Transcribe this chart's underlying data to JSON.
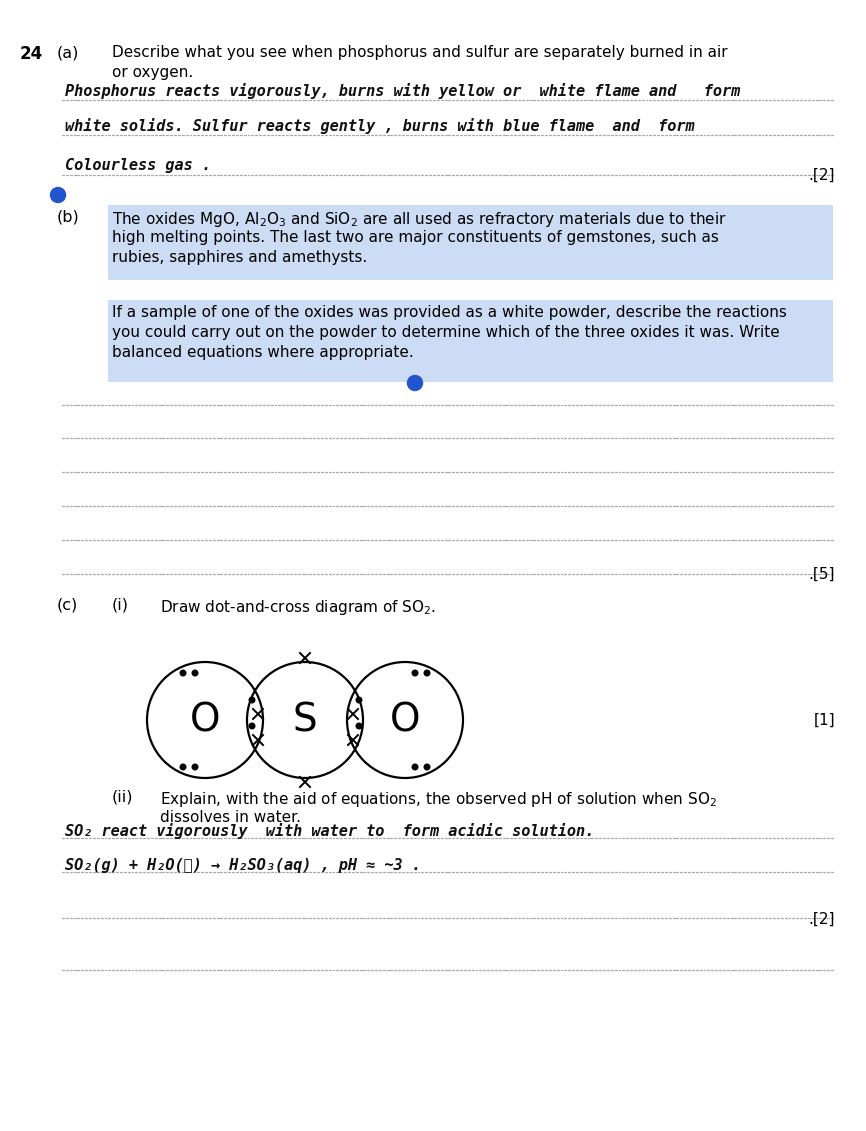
{
  "bg_color": "#ffffff",
  "question_number": "24",
  "part_a_label": "(a)",
  "part_a_text_line1": "Describe what you see when phosphorus and sulfur are separately burned in air",
  "part_a_text_line2": "or oxygen.",
  "part_a_hw1": "Phosphorus reacts vigorously, burns with yellow or  white flame and   form",
  "part_a_hw2": "white solids. Sulfur reacts gently , burns with blue flame  and  form",
  "part_a_hw3": "Colourless gas .",
  "part_a_mark": "[2]",
  "part_b_label": "(b)",
  "part_b_text1a": "The oxides MgO, Al",
  "part_b_text1b": "2",
  "part_b_text1c": "O",
  "part_b_text1d": "3",
  "part_b_text1e": " and SiO",
  "part_b_text1f": "2",
  "part_b_text1g": " are all used as refractory materials due to their",
  "part_b_text1h": "high melting points. The last two are major constituents of gemstones, such as",
  "part_b_text1i": "rubies, sapphires and amethysts.",
  "part_b_text2a": "If a sample of one of the oxides was provided as a white powder, describe the reactions",
  "part_b_text2b": "you could carry out on the powder to determine which of the three oxides it was. Write",
  "part_b_text2c": "balanced equations where appropriate.",
  "part_b_mark": "[5]",
  "part_c_label": "(c)",
  "part_c_i_label": "(i)",
  "part_c_i_text": "Draw dot-and-cross diagram of SO",
  "part_c_i_mark": "[1]",
  "part_c_ii_label": "(ii)",
  "part_c_ii_text1": "Explain, with the aid of equations, the observed pH of solution when SO",
  "part_c_ii_text2": "dissolves in water.",
  "part_c_ii_hw1": "SO₂ react vigorously  with water to  form acidic solution.",
  "part_c_ii_hw2": "SO₂(g) + H₂O(ℓ) → H₂SO₃(aq) , pH ≈ ~3 .",
  "part_c_ii_mark": "[2]",
  "text_color": "#000000",
  "highlight_color": "#ccdcf4",
  "blue_dot_color": "#2255cc",
  "hw_color": "#111111",
  "dot_color": "#999999"
}
